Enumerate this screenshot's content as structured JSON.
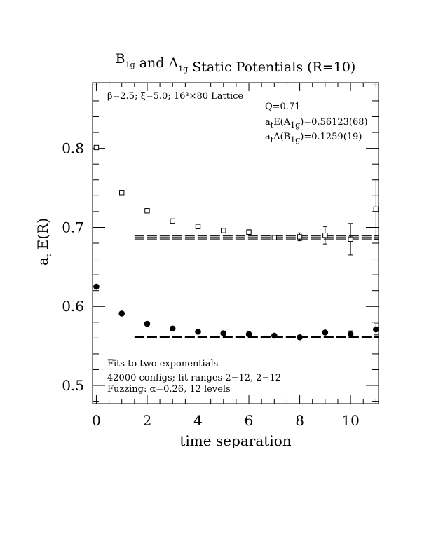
{
  "chart_data": {
    "type": "scatter",
    "title": {
      "parts": [
        {
          "text": "B",
          "sub": "1g"
        },
        {
          "text": " and A",
          "sub": "1g"
        },
        {
          "text": " Static Potentials (R=10)"
        }
      ]
    },
    "xlabel": "time separation",
    "ylabel": {
      "main": "a",
      "sub": "t",
      "rest": " E(R)"
    },
    "xlim": [
      -0.15,
      11.1
    ],
    "ylim": [
      0.477,
      0.883
    ],
    "xticks": [
      0,
      2,
      4,
      6,
      8,
      10
    ],
    "xtick_labels": [
      "0",
      "2",
      "4",
      "6",
      "8",
      "10"
    ],
    "yticks": [
      0.5,
      0.6,
      0.7,
      0.8
    ],
    "ytick_labels": [
      "0.5",
      "0.6",
      "0.7",
      "0.8"
    ],
    "x_minor_step": 0.5,
    "y_minor_step": 0.02,
    "grid": false,
    "series": [
      {
        "name": "B1g",
        "marker": "open-square",
        "points": [
          {
            "x": 0,
            "y": 0.801,
            "err": 0.001
          },
          {
            "x": 1,
            "y": 0.744,
            "err": 0.001
          },
          {
            "x": 2,
            "y": 0.721,
            "err": 0.002
          },
          {
            "x": 3,
            "y": 0.708,
            "err": 0.002
          },
          {
            "x": 4,
            "y": 0.701,
            "err": 0.002
          },
          {
            "x": 5,
            "y": 0.696,
            "err": 0.002
          },
          {
            "x": 6,
            "y": 0.694,
            "err": 0.003
          },
          {
            "x": 7,
            "y": 0.687,
            "err": 0.003
          },
          {
            "x": 8,
            "y": 0.688,
            "err": 0.005
          },
          {
            "x": 9,
            "y": 0.69,
            "err": 0.011
          },
          {
            "x": 10,
            "y": 0.685,
            "err": 0.02
          },
          {
            "x": 11,
            "y": 0.723,
            "err": 0.038
          }
        ]
      },
      {
        "name": "A1g",
        "marker": "filled-circle",
        "points": [
          {
            "x": 0,
            "y": 0.625,
            "err": 0.001
          },
          {
            "x": 1,
            "y": 0.591,
            "err": 0.001
          },
          {
            "x": 2,
            "y": 0.578,
            "err": 0.001
          },
          {
            "x": 3,
            "y": 0.572,
            "err": 0.001
          },
          {
            "x": 4,
            "y": 0.568,
            "err": 0.001
          },
          {
            "x": 5,
            "y": 0.566,
            "err": 0.001
          },
          {
            "x": 6,
            "y": 0.565,
            "err": 0.001
          },
          {
            "x": 7,
            "y": 0.563,
            "err": 0.001
          },
          {
            "x": 8,
            "y": 0.561,
            "err": 0.001
          },
          {
            "x": 9,
            "y": 0.567,
            "err": 0.002
          },
          {
            "x": 10,
            "y": 0.565,
            "err": 0.004
          },
          {
            "x": 11,
            "y": 0.571,
            "err": 0.007
          }
        ]
      }
    ],
    "fit_bands": [
      {
        "name": "B1g fit",
        "x_range": [
          1.5,
          11.1
        ],
        "center": 0.6872,
        "err": 0.0019
      },
      {
        "name": "A1g fit",
        "x_range": [
          1.5,
          11.1
        ],
        "center": 0.5612,
        "err": 0.0007
      }
    ],
    "annotations": {
      "lattice": "β=2.5; ξ=5.0; 16³×80 Lattice",
      "q": "Q=0.71",
      "a1g_prefix": "a",
      "a1g_sub_t": "t",
      "a1g_mid": "E(A",
      "a1g_sub_1g": "1g",
      "a1g_value": ")=0.56123(68)",
      "b1g_prefix": "a",
      "b1g_sub_t": "t",
      "b1g_mid": "Δ(B",
      "b1g_sub_1g": "1g",
      "b1g_value": ")=0.1259(19)",
      "fits": "Fits to two exponentials",
      "configs": "42000 configs; fit ranges 2−12, 2−12",
      "fuzzing": "Fuzzing: α=0.26, 12 levels"
    }
  }
}
